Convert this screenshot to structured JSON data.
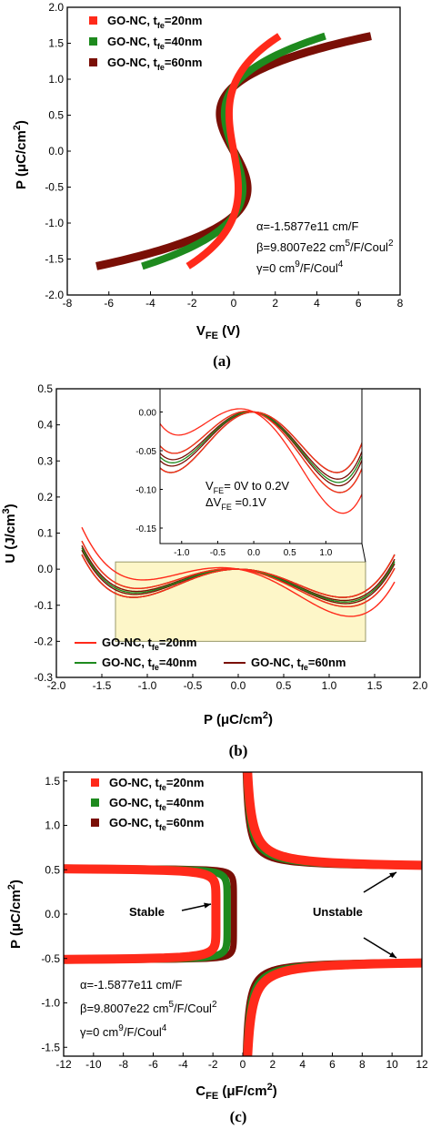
{
  "colors": {
    "s20": "#ff2a1a",
    "s40": "#1e8a1e",
    "s60": "#7a0f06",
    "inset_fill": "#fdf6c8",
    "inset_box": "#9a9a6a"
  },
  "chart_data": [
    {
      "type": "line",
      "caption": "(a)",
      "xlabel": "V",
      "xlabel_sub": "FE",
      "xlabel_tail": " (V)",
      "ylabel": "P (μC/cm",
      "ylabel_sup": "2",
      "ylabel_tail": ")",
      "xlim": [
        -8,
        8
      ],
      "ylim": [
        -2.0,
        2.0
      ],
      "xticks": [
        "-8",
        "-6",
        "-4",
        "-2",
        "0",
        "2",
        "4",
        "6",
        "8"
      ],
      "yticks": [
        "-2.0",
        "-1.5",
        "-1.0",
        "-0.5",
        "0.0",
        "0.5",
        "1.0",
        "1.5",
        "2.0"
      ],
      "legend": {
        "position": "top-left",
        "entries": [
          {
            "name": "GO-NC, t",
            "sub": "fe",
            "tail": "=20nm",
            "color_key": "s20"
          },
          {
            "name": "GO-NC, t",
            "sub": "fe",
            "tail": "=40nm",
            "color_key": "s40"
          },
          {
            "name": "GO-NC, t",
            "sub": "fe",
            "tail": "=60nm",
            "color_key": "s60"
          }
        ]
      },
      "annotations": [
        {
          "text": "α=-1.5877e11 cm/F"
        },
        {
          "text": "β=9.8007e22 cm",
          "sup": "5",
          "tail": "/F/Coul",
          "sup2": "2"
        },
        {
          "text": "γ=0 cm",
          "sup": "9",
          "tail": "/F/Coul",
          "sup2": "4"
        }
      ],
      "model": {
        "alpha": -158770000000.0,
        "beta": 9.8007e+22,
        "gamma": 0,
        "p_range": [
          -1.6,
          1.6
        ]
      },
      "series": [
        {
          "name": "GO-NC, t_fe=20nm",
          "t_fe_nm": 20,
          "V_at_P_1.6": 2.2
        },
        {
          "name": "GO-NC, t_fe=40nm",
          "t_fe_nm": 40,
          "V_at_P_1.6": 4.4
        },
        {
          "name": "GO-NC, t_fe=60nm",
          "t_fe_nm": 60,
          "V_at_P_1.6": 6.6
        }
      ]
    },
    {
      "type": "line",
      "caption": "(b)",
      "xlabel": "P (μC/cm",
      "xlabel_sup": "2",
      "xlabel_tail": ")",
      "ylabel": "U (J/cm",
      "ylabel_sup": "3",
      "ylabel_tail": ")",
      "xlim": [
        -2.0,
        2.0
      ],
      "ylim": [
        -0.3,
        0.5
      ],
      "xticks": [
        "-2.0",
        "-1.5",
        "-1.0",
        "-0.5",
        "0.0",
        "0.5",
        "1.0",
        "1.5",
        "2.0"
      ],
      "yticks": [
        "-0.3",
        "-0.2",
        "-0.1",
        "0.0",
        "0.1",
        "0.2",
        "0.3",
        "0.4",
        "0.5"
      ],
      "legend": {
        "position": "bottom",
        "entries": [
          {
            "name": "GO-NC, t",
            "sub": "fe",
            "tail": "=20nm",
            "color_key": "s20"
          },
          {
            "name": "GO-NC, t",
            "sub": "fe",
            "tail": "=40nm",
            "color_key": "s40"
          },
          {
            "name": "GO-NC, t",
            "sub": "fe",
            "tail": "=60nm",
            "color_key": "s60"
          }
        ]
      },
      "highlight_region": {
        "x": [
          -1.35,
          1.4
        ],
        "y": [
          -0.2,
          0.02
        ]
      },
      "inset": {
        "xlim": [
          -1.3,
          1.5
        ],
        "ylim": [
          -0.17,
          0.03
        ],
        "xticks": [
          "-1.0",
          "-0.5",
          "0.0",
          "0.5",
          "1.0"
        ],
        "yticks": [
          "0.00",
          "-0.05",
          "-0.10",
          "-0.15"
        ],
        "annotations": [
          {
            "text": "V",
            "sub": "FE",
            "tail": "= 0V to 0.2V"
          },
          {
            "text": "ΔV",
            "sub": "FE",
            "tail": " =0.1V"
          }
        ]
      },
      "model": {
        "v_steps": [
          0,
          0.1,
          0.2
        ],
        "p_range": [
          -1.72,
          1.72
        ]
      }
    },
    {
      "type": "scatter",
      "caption": "(c)",
      "xlabel": "C",
      "xlabel_sub": "FE",
      "xlabel_tail": " (μF/cm",
      "xlabel_sup": "2",
      "xlabel_tail2": ")",
      "ylabel": "P (μC/cm",
      "ylabel_sup": "2",
      "ylabel_tail": ")",
      "xlim": [
        -12,
        12
      ],
      "ylim": [
        -1.6,
        1.6
      ],
      "xticks": [
        "-12",
        "-10",
        "-8",
        "-6",
        "-4",
        "-2",
        "0",
        "2",
        "4",
        "6",
        "8",
        "10",
        "12"
      ],
      "yticks": [
        "-1.5",
        "-1.0",
        "-0.5",
        "0.0",
        "0.5",
        "1.0",
        "1.5"
      ],
      "legend": {
        "position": "top-left",
        "entries": [
          {
            "name": "GO-NC, t",
            "sub": "fe",
            "tail": "=20nm",
            "color_key": "s20"
          },
          {
            "name": "GO-NC, t",
            "sub": "fe",
            "tail": "=40nm",
            "color_key": "s40"
          },
          {
            "name": "GO-NC, t",
            "sub": "fe",
            "tail": "=60nm",
            "color_key": "s60"
          }
        ]
      },
      "annotations": [
        {
          "text": "α=-1.5877e11 cm/F"
        },
        {
          "text": "β=9.8007e22 cm",
          "sup": "5",
          "tail": "/F/Coul",
          "sup2": "2"
        },
        {
          "text": "γ=0 cm",
          "sup": "9",
          "tail": "/F/Coul",
          "sup2": "4"
        }
      ],
      "labels": {
        "stable": "Stable",
        "unstable": "Unstable"
      },
      "model": {
        "p_coercive": 0.5207,
        "stable_tip_C": [
          -1.8,
          -1.05,
          -0.6
        ]
      }
    }
  ]
}
